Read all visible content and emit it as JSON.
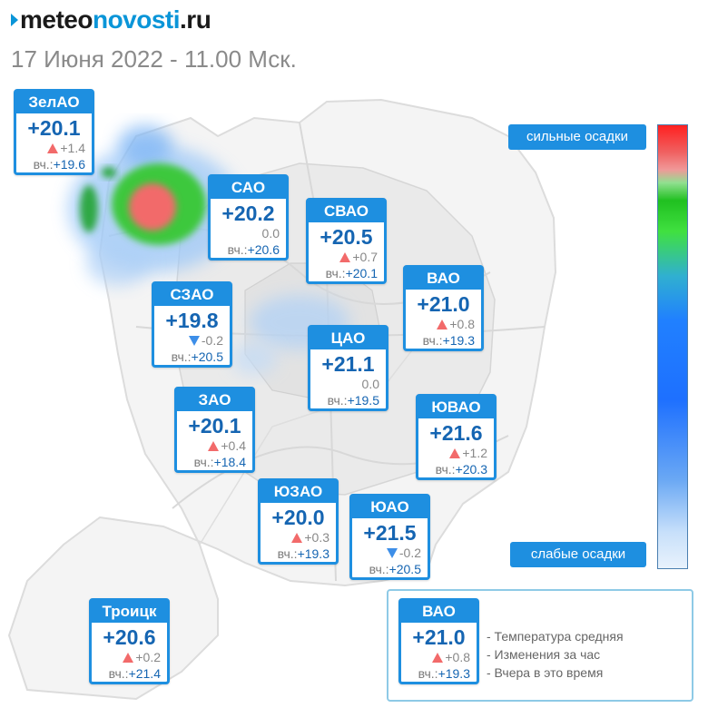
{
  "brand": {
    "part1": "meteo",
    "part2": "novosti",
    "part3": ".ru"
  },
  "dateline": "17 Июня 2022 - 11.00 Мск.",
  "scale": {
    "high_label": "сильные осадки",
    "low_label": "слабые осадки",
    "gradient": [
      "#ff2020",
      "#40e040",
      "#1e70ff",
      "#e8f2fc"
    ]
  },
  "colors": {
    "accent": "#1e8fe0",
    "temp": "#1565b2",
    "up": "#f26a6a",
    "down": "#3d8ee8"
  },
  "districts": [
    {
      "name": "ЗелАО",
      "temp": "+20.1",
      "trend": "up",
      "change": "+1.4",
      "yest_label": "вч.:",
      "yest": "+19.6"
    },
    {
      "name": "САО",
      "temp": "+20.2",
      "trend": "none",
      "change": "0.0",
      "yest_label": "вч.:",
      "yest": "+20.6"
    },
    {
      "name": "СВАО",
      "temp": "+20.5",
      "trend": "up",
      "change": "+0.7",
      "yest_label": "вч.:",
      "yest": "+20.1"
    },
    {
      "name": "ВАО",
      "temp": "+21.0",
      "trend": "up",
      "change": "+0.8",
      "yest_label": "вч.:",
      "yest": "+19.3"
    },
    {
      "name": "СЗАО",
      "temp": "+19.8",
      "trend": "down",
      "change": "-0.2",
      "yest_label": "вч.:",
      "yest": "+20.5"
    },
    {
      "name": "ЦАО",
      "temp": "+21.1",
      "trend": "none",
      "change": "0.0",
      "yest_label": "вч.:",
      "yest": "+19.5"
    },
    {
      "name": "ЗАО",
      "temp": "+20.1",
      "trend": "up",
      "change": "+0.4",
      "yest_label": "вч.:",
      "yest": "+18.4"
    },
    {
      "name": "ЮВАО",
      "temp": "+21.6",
      "trend": "up",
      "change": "+1.2",
      "yest_label": "вч.:",
      "yest": "+20.3"
    },
    {
      "name": "ЮЗАО",
      "temp": "+20.0",
      "trend": "up",
      "change": "+0.3",
      "yest_label": "вч.:",
      "yest": "+19.3"
    },
    {
      "name": "ЮАО",
      "temp": "+21.5",
      "trend": "down",
      "change": "-0.2",
      "yest_label": "вч.:",
      "yest": "+20.5"
    },
    {
      "name": "Троицк",
      "temp": "+20.6",
      "trend": "up",
      "change": "+0.2",
      "yest_label": "вч.:",
      "yest": "+21.4"
    }
  ],
  "legend": {
    "example": {
      "name": "ВАО",
      "temp": "+21.0",
      "trend": "up",
      "change": "+0.8",
      "yest_label": "вч.:",
      "yest": "+19.3"
    },
    "lines": [
      "- Температура средняя",
      "- Изменения за час",
      "- Вчера в это время"
    ]
  }
}
